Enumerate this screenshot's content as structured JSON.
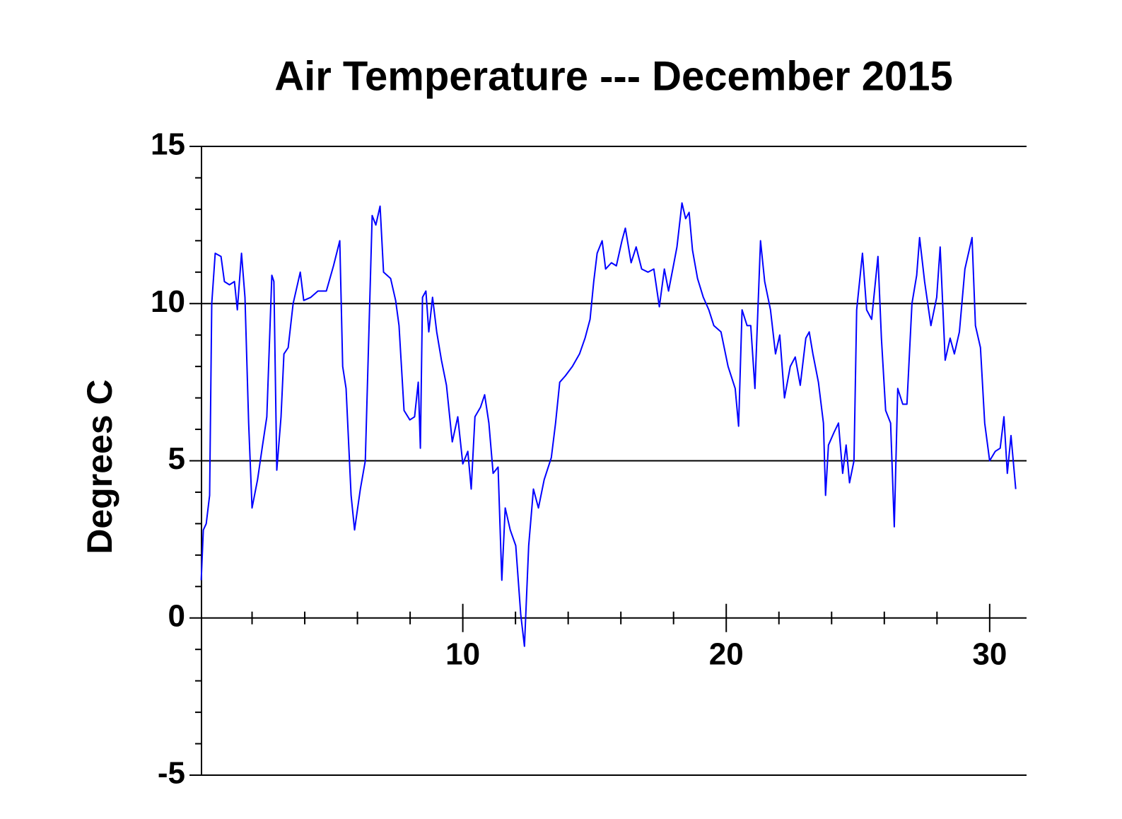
{
  "chart_data": {
    "type": "line",
    "title": "Air Temperature --- December 2015",
    "ylabel": "Degrees C",
    "color": "#0000ff",
    "grid": true,
    "xlim": [
      0,
      31.4
    ],
    "ylim": [
      -5,
      15
    ],
    "xticks": [
      10,
      20,
      30
    ],
    "yticks": [
      -5,
      0,
      5,
      10,
      15
    ],
    "xminorticks": [
      2,
      4,
      6,
      8,
      12,
      14,
      16,
      18,
      22,
      24,
      26,
      28
    ],
    "yminorticks": [
      -4,
      -3,
      -2,
      -1,
      1,
      2,
      3,
      4,
      6,
      7,
      8,
      9,
      11,
      12,
      13,
      14
    ],
    "x": [
      0.07,
      0.15,
      0.26,
      0.39,
      0.47,
      0.6,
      0.82,
      0.95,
      1.14,
      1.33,
      1.44,
      1.6,
      1.73,
      1.87,
      2.0,
      2.21,
      2.4,
      2.56,
      2.75,
      2.83,
      2.94,
      3.1,
      3.21,
      3.37,
      3.56,
      3.83,
      3.96,
      4.23,
      4.5,
      4.82,
      5.09,
      5.33,
      5.44,
      5.57,
      5.76,
      5.89,
      6.11,
      6.3,
      6.56,
      6.7,
      6.86,
      6.99,
      7.26,
      7.45,
      7.58,
      7.77,
      7.99,
      8.17,
      8.31,
      8.39,
      8.47,
      8.6,
      8.71,
      8.85,
      9.01,
      9.19,
      9.38,
      9.6,
      9.81,
      10.0,
      10.19,
      10.32,
      10.46,
      10.67,
      10.83,
      10.99,
      11.15,
      11.34,
      11.48,
      11.61,
      11.8,
      12.01,
      12.2,
      12.34,
      12.5,
      12.68,
      12.87,
      13.09,
      13.36,
      13.52,
      13.68,
      13.89,
      14.16,
      14.43,
      14.64,
      14.83,
      14.97,
      15.1,
      15.29,
      15.42,
      15.64,
      15.83,
      16.04,
      16.17,
      16.39,
      16.58,
      16.79,
      17.03,
      17.25,
      17.46,
      17.65,
      17.81,
      17.97,
      18.13,
      18.32,
      18.46,
      18.59,
      18.72,
      18.91,
      19.13,
      19.34,
      19.53,
      19.8,
      20.07,
      20.34,
      20.47,
      20.6,
      20.79,
      20.93,
      21.09,
      21.3,
      21.46,
      21.68,
      21.87,
      22.03,
      22.21,
      22.43,
      22.62,
      22.81,
      23.02,
      23.15,
      23.29,
      23.5,
      23.69,
      23.77,
      23.88,
      24.09,
      24.26,
      24.42,
      24.55,
      24.68,
      24.85,
      24.95,
      25.17,
      25.33,
      25.52,
      25.76,
      25.89,
      26.05,
      26.24,
      26.38,
      26.51,
      26.7,
      26.86,
      27.05,
      27.23,
      27.34,
      27.53,
      27.77,
      27.99,
      28.12,
      28.31,
      28.5,
      28.66,
      28.85,
      29.06,
      29.33,
      29.46,
      29.65,
      29.81,
      30.0,
      30.21,
      30.4,
      30.54,
      30.67,
      30.81,
      30.99
    ],
    "values": [
      1.2,
      2.8,
      3.0,
      3.9,
      10.0,
      11.6,
      11.5,
      10.7,
      10.6,
      10.7,
      9.8,
      11.6,
      10.2,
      6.2,
      3.5,
      4.4,
      5.5,
      6.4,
      10.9,
      10.7,
      4.7,
      6.4,
      8.4,
      8.6,
      10.0,
      11.0,
      10.1,
      10.2,
      10.4,
      10.4,
      11.2,
      12.0,
      8.0,
      7.3,
      3.9,
      2.8,
      4.1,
      5.0,
      12.8,
      12.5,
      13.1,
      11.0,
      10.8,
      10.1,
      9.3,
      6.6,
      6.3,
      6.4,
      7.5,
      5.4,
      10.2,
      10.4,
      9.1,
      10.2,
      9.1,
      8.2,
      7.4,
      5.6,
      6.4,
      4.9,
      5.3,
      4.1,
      6.4,
      6.7,
      7.1,
      6.2,
      4.6,
      4.8,
      1.2,
      3.5,
      2.8,
      2.3,
      0.1,
      -0.9,
      2.3,
      4.1,
      3.5,
      4.4,
      5.1,
      6.2,
      7.5,
      7.7,
      8.0,
      8.4,
      8.9,
      9.5,
      10.7,
      11.6,
      12.0,
      11.1,
      11.3,
      11.2,
      12.0,
      12.4,
      11.3,
      11.8,
      11.1,
      11.0,
      11.1,
      9.9,
      11.1,
      10.4,
      11.1,
      11.8,
      13.2,
      12.7,
      12.9,
      11.7,
      10.8,
      10.2,
      9.8,
      9.3,
      9.1,
      8.0,
      7.3,
      6.1,
      9.8,
      9.3,
      9.3,
      7.3,
      12.0,
      10.7,
      9.8,
      8.4,
      9.0,
      7.0,
      8.0,
      8.3,
      7.4,
      8.9,
      9.1,
      8.4,
      7.5,
      6.2,
      3.9,
      5.5,
      5.9,
      6.2,
      4.6,
      5.5,
      4.3,
      5.0,
      9.8,
      11.6,
      9.8,
      9.5,
      11.5,
      8.9,
      6.6,
      6.2,
      2.9,
      7.3,
      6.8,
      6.8,
      10.0,
      10.9,
      12.1,
      10.7,
      9.3,
      10.2,
      11.8,
      8.2,
      8.9,
      8.4,
      9.1,
      11.1,
      12.1,
      9.3,
      8.6,
      6.2,
      5.0,
      5.3,
      5.4,
      6.4,
      4.6,
      5.8,
      4.1
    ]
  }
}
